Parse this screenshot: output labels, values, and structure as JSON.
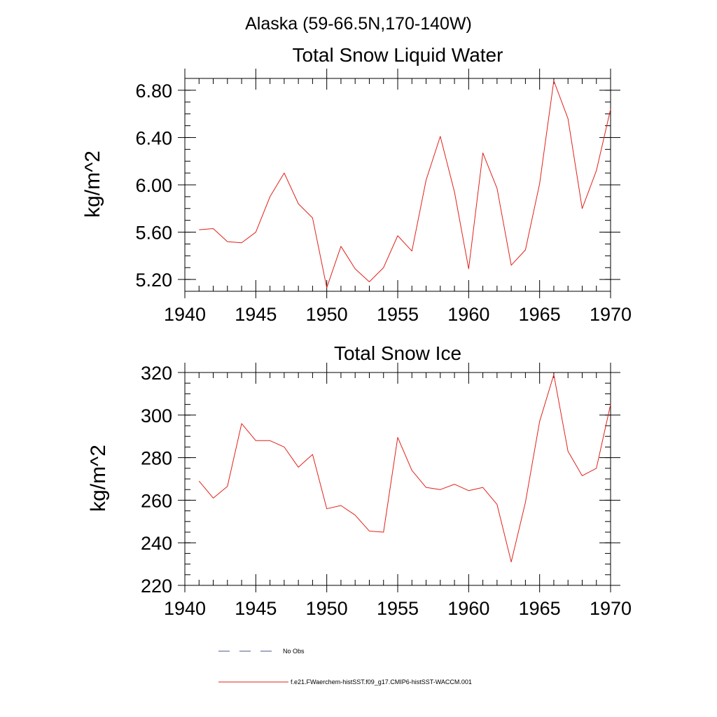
{
  "suptitle": "Alaska (59-66.5N,170-140W)",
  "legend": [
    {
      "label": "No Obs",
      "color": "#4a5a8a",
      "style": "dashed"
    },
    {
      "label": "f.e21.FWaerchem-histSST.f09_g17.CMIP6-histSST-WACCM.001",
      "color": "#e0211a",
      "style": "solid"
    }
  ],
  "chart_data": [
    {
      "type": "line",
      "title": "Total Snow Liquid Water",
      "xlabel": "",
      "ylabel": "kg/m^2",
      "xlim": [
        1940,
        1970
      ],
      "ylim": [
        5.1,
        6.9
      ],
      "xticks": [
        1940,
        1945,
        1950,
        1955,
        1960,
        1965,
        1970
      ],
      "yticks": [
        5.2,
        5.6,
        6.0,
        6.4,
        6.8
      ],
      "ytick_labels": [
        "5.20",
        "5.60",
        "6.00",
        "6.40",
        "6.80"
      ],
      "x": [
        1941,
        1942,
        1943,
        1944,
        1945,
        1946,
        1947,
        1948,
        1949,
        1950,
        1951,
        1952,
        1953,
        1954,
        1955,
        1956,
        1957,
        1958,
        1959,
        1960,
        1961,
        1962,
        1963,
        1964,
        1965,
        1966,
        1967,
        1968,
        1969,
        1970
      ],
      "series": [
        {
          "values": [
            5.62,
            5.63,
            5.52,
            5.51,
            5.6,
            5.9,
            6.1,
            5.84,
            5.72,
            5.13,
            5.48,
            5.29,
            5.18,
            5.3,
            5.57,
            5.44,
            6.04,
            6.41,
            5.94,
            5.29,
            6.27,
            5.97,
            5.32,
            5.45,
            6.01,
            6.88,
            6.56,
            5.8,
            6.12,
            6.64
          ],
          "color": "#e0211a"
        }
      ]
    },
    {
      "type": "line",
      "title": "Total Snow Ice",
      "xlabel": "",
      "ylabel": "kg/m^2",
      "xlim": [
        1940,
        1970
      ],
      "ylim": [
        220,
        320
      ],
      "xticks": [
        1940,
        1945,
        1950,
        1955,
        1960,
        1965,
        1970
      ],
      "yticks": [
        220,
        240,
        260,
        280,
        300,
        320
      ],
      "ytick_labels": [
        "220",
        "240",
        "260",
        "280",
        "300",
        "320"
      ],
      "x": [
        1941,
        1942,
        1943,
        1944,
        1945,
        1946,
        1947,
        1948,
        1949,
        1950,
        1951,
        1952,
        1953,
        1954,
        1955,
        1956,
        1957,
        1958,
        1959,
        1960,
        1961,
        1962,
        1963,
        1964,
        1965,
        1966,
        1967,
        1968,
        1969,
        1970
      ],
      "series": [
        {
          "values": [
            269,
            261,
            266.5,
            296,
            288,
            288,
            285,
            275.5,
            281.5,
            256,
            257.5,
            253,
            245.5,
            245,
            289.5,
            274,
            266,
            265,
            267.5,
            264.5,
            266,
            258,
            231,
            259,
            297,
            319,
            283,
            271.5,
            275,
            305
          ],
          "color": "#e0211a"
        }
      ]
    }
  ]
}
